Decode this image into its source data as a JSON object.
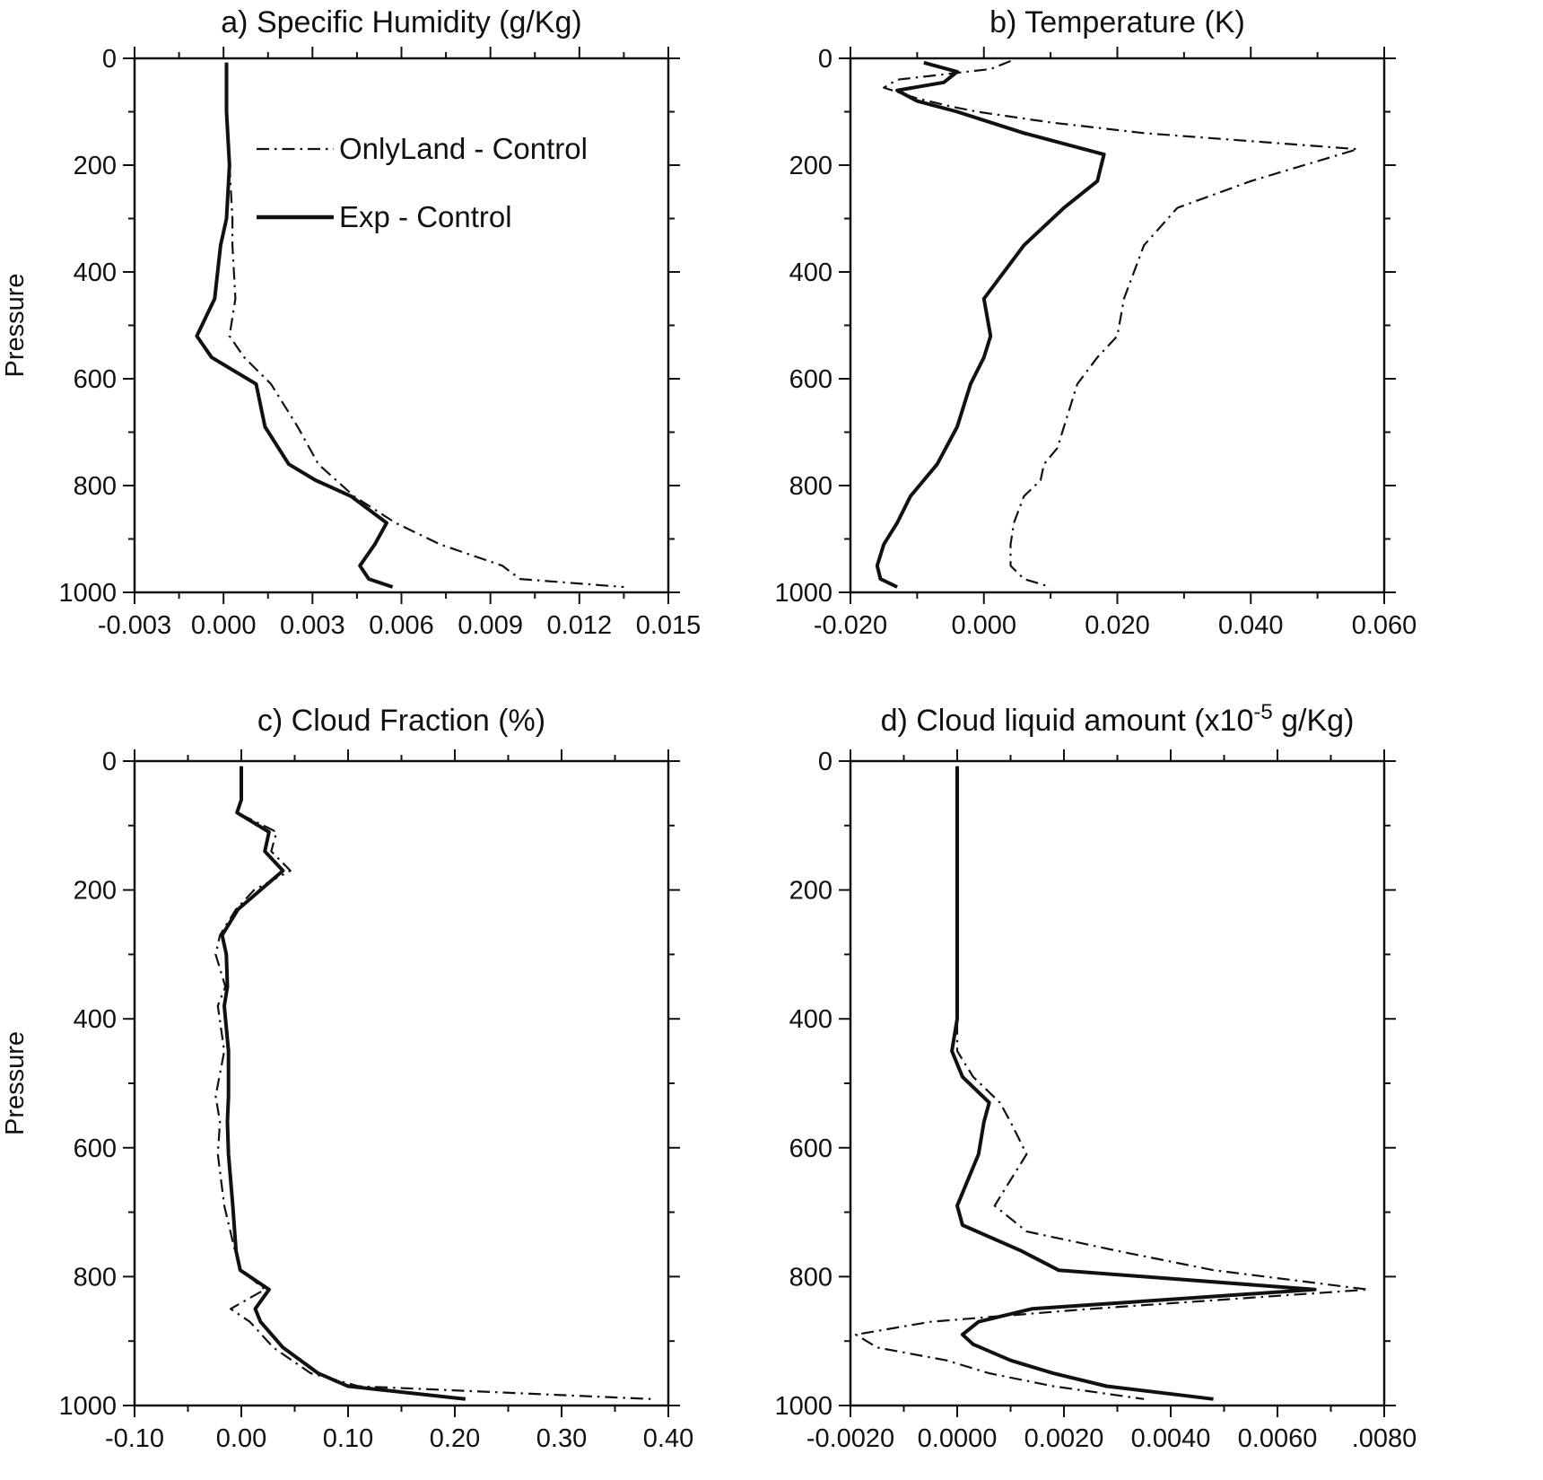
{
  "figure": {
    "background": "#ffffff",
    "line_color": "#111111"
  },
  "legend": {
    "position": "inside-upper-left-of-panel-a",
    "entries": [
      {
        "label": "OnlyLand - Control",
        "style": "dashdot"
      },
      {
        "label": "Exp - Control",
        "style": "solid"
      }
    ]
  },
  "chart_data": [
    {
      "id": "a",
      "type": "line",
      "title": "a) Specific Humidity (g/Kg)",
      "ylabel": "Pressure",
      "y_inverted": true,
      "grid": false,
      "xlim": [
        -0.003,
        0.015
      ],
      "ylim": [
        0,
        1000
      ],
      "xticks": {
        "values": [
          -0.003,
          0.0,
          0.003,
          0.006,
          0.009,
          0.012,
          0.015
        ],
        "labels": [
          "-0.003",
          "0.000",
          "0.003",
          "0.006",
          "0.009",
          "0.012",
          "0.015"
        ]
      },
      "yticks": {
        "values": [
          0,
          200,
          400,
          600,
          800,
          1000
        ],
        "labels": [
          "0",
          "200",
          "400",
          "600",
          "800",
          "1000"
        ]
      },
      "legend_position": "inside-upper-left",
      "series": [
        {
          "name": "OnlyLand - Control",
          "style": "dashdot",
          "points": [
            [
              8,
              0.0001
            ],
            [
              100,
              0.0001
            ],
            [
              200,
              0.0002
            ],
            [
              300,
              0.0003
            ],
            [
              350,
              0.0003
            ],
            [
              450,
              0.0004
            ],
            [
              520,
              0.0002
            ],
            [
              560,
              0.0007
            ],
            [
              610,
              0.0016
            ],
            [
              690,
              0.0025
            ],
            [
              760,
              0.0032
            ],
            [
              820,
              0.0044
            ],
            [
              870,
              0.0058
            ],
            [
              910,
              0.0073
            ],
            [
              950,
              0.0094
            ],
            [
              975,
              0.01
            ],
            [
              990,
              0.0135
            ]
          ]
        },
        {
          "name": "Exp - Control",
          "style": "solid",
          "points": [
            [
              8,
              0.0001
            ],
            [
              100,
              0.0001
            ],
            [
              200,
              0.0002
            ],
            [
              300,
              0.0001
            ],
            [
              350,
              -0.0001
            ],
            [
              450,
              -0.0003
            ],
            [
              520,
              -0.0009
            ],
            [
              560,
              -0.0004
            ],
            [
              610,
              0.0011
            ],
            [
              690,
              0.0014
            ],
            [
              760,
              0.0022
            ],
            [
              790,
              0.0031
            ],
            [
              820,
              0.0043
            ],
            [
              870,
              0.0055
            ],
            [
              910,
              0.0051
            ],
            [
              950,
              0.0046
            ],
            [
              975,
              0.0049
            ],
            [
              990,
              0.0057
            ]
          ]
        }
      ]
    },
    {
      "id": "b",
      "type": "line",
      "title": "b) Temperature (K)",
      "ylabel": "",
      "y_inverted": true,
      "grid": false,
      "xlim": [
        -0.02,
        0.06
      ],
      "ylim": [
        0,
        1000
      ],
      "xticks": {
        "values": [
          -0.02,
          0.0,
          0.02,
          0.04,
          0.06
        ],
        "labels": [
          "-0.020",
          "0.000",
          "0.020",
          "0.040",
          "0.060"
        ]
      },
      "yticks": {
        "values": [
          0,
          200,
          400,
          600,
          800,
          1000
        ],
        "labels": [
          "0",
          "200",
          "400",
          "600",
          "800",
          "1000"
        ]
      },
      "legend_position": null,
      "series": [
        {
          "name": "OnlyLand - Control",
          "style": "dashdot",
          "points": [
            [
              5,
              0.004
            ],
            [
              20,
              0.001
            ],
            [
              40,
              -0.013
            ],
            [
              55,
              -0.015
            ],
            [
              75,
              -0.01
            ],
            [
              90,
              -0.005
            ],
            [
              100,
              -0.001
            ],
            [
              120,
              0.01
            ],
            [
              140,
              0.024
            ],
            [
              170,
              0.056
            ],
            [
              200,
              0.048
            ],
            [
              230,
              0.04
            ],
            [
              280,
              0.029
            ],
            [
              350,
              0.024
            ],
            [
              450,
              0.021
            ],
            [
              520,
              0.02
            ],
            [
              560,
              0.017
            ],
            [
              610,
              0.014
            ],
            [
              690,
              0.012
            ],
            [
              730,
              0.011
            ],
            [
              760,
              0.009
            ],
            [
              790,
              0.0085
            ],
            [
              820,
              0.006
            ],
            [
              870,
              0.0045
            ],
            [
              910,
              0.004
            ],
            [
              950,
              0.004
            ],
            [
              975,
              0.006
            ],
            [
              990,
              0.01
            ]
          ]
        },
        {
          "name": "Exp - Control",
          "style": "solid",
          "points": [
            [
              8,
              -0.009
            ],
            [
              25,
              -0.004
            ],
            [
              45,
              -0.006
            ],
            [
              60,
              -0.013
            ],
            [
              80,
              -0.01
            ],
            [
              100,
              -0.004
            ],
            [
              140,
              0.006
            ],
            [
              180,
              0.018
            ],
            [
              230,
              0.017
            ],
            [
              280,
              0.012
            ],
            [
              350,
              0.006
            ],
            [
              450,
              0.0
            ],
            [
              520,
              0.001
            ],
            [
              560,
              0.0
            ],
            [
              610,
              -0.002
            ],
            [
              690,
              -0.004
            ],
            [
              760,
              -0.007
            ],
            [
              820,
              -0.011
            ],
            [
              870,
              -0.013
            ],
            [
              910,
              -0.015
            ],
            [
              950,
              -0.016
            ],
            [
              975,
              -0.0155
            ],
            [
              990,
              -0.013
            ]
          ]
        }
      ]
    },
    {
      "id": "c",
      "type": "line",
      "title": "c) Cloud Fraction (%)",
      "ylabel": "Pressure",
      "y_inverted": true,
      "grid": false,
      "xlim": [
        -0.1,
        0.4
      ],
      "ylim": [
        0,
        1000
      ],
      "xticks": {
        "values": [
          -0.1,
          0.0,
          0.1,
          0.2,
          0.3,
          0.4
        ],
        "labels": [
          "-0.10",
          "0.00",
          "0.10",
          "0.20",
          "0.30",
          "0.40"
        ]
      },
      "yticks": {
        "values": [
          0,
          200,
          400,
          600,
          800,
          1000
        ],
        "labels": [
          "0",
          "200",
          "400",
          "600",
          "800",
          "1000"
        ]
      },
      "legend_position": null,
      "series": [
        {
          "name": "OnlyLand - Control",
          "style": "dashdot",
          "points": [
            [
              8,
              0.0
            ],
            [
              60,
              0.0
            ],
            [
              80,
              -0.004
            ],
            [
              110,
              0.033
            ],
            [
              140,
              0.028
            ],
            [
              170,
              0.046
            ],
            [
              200,
              0.012
            ],
            [
              230,
              -0.005
            ],
            [
              270,
              -0.02
            ],
            [
              300,
              -0.024
            ],
            [
              350,
              -0.015
            ],
            [
              380,
              -0.022
            ],
            [
              450,
              -0.016
            ],
            [
              520,
              -0.024
            ],
            [
              560,
              -0.02
            ],
            [
              610,
              -0.022
            ],
            [
              690,
              -0.016
            ],
            [
              760,
              -0.006
            ],
            [
              790,
              0.0
            ],
            [
              820,
              0.022
            ],
            [
              850,
              -0.01
            ],
            [
              870,
              0.008
            ],
            [
              910,
              0.03
            ],
            [
              950,
              0.065
            ],
            [
              970,
              0.11
            ],
            [
              990,
              0.385
            ]
          ]
        },
        {
          "name": "Exp - Control",
          "style": "solid",
          "points": [
            [
              8,
              0.0
            ],
            [
              60,
              0.0
            ],
            [
              80,
              -0.004
            ],
            [
              110,
              0.026
            ],
            [
              140,
              0.022
            ],
            [
              170,
              0.039
            ],
            [
              200,
              0.018
            ],
            [
              230,
              -0.003
            ],
            [
              270,
              -0.018
            ],
            [
              300,
              -0.014
            ],
            [
              350,
              -0.013
            ],
            [
              380,
              -0.016
            ],
            [
              450,
              -0.012
            ],
            [
              520,
              -0.012
            ],
            [
              560,
              -0.013
            ],
            [
              610,
              -0.012
            ],
            [
              690,
              -0.008
            ],
            [
              760,
              -0.005
            ],
            [
              790,
              -0.001
            ],
            [
              820,
              0.026
            ],
            [
              850,
              0.013
            ],
            [
              870,
              0.018
            ],
            [
              910,
              0.039
            ],
            [
              950,
              0.072
            ],
            [
              970,
              0.1
            ],
            [
              990,
              0.21
            ]
          ]
        }
      ]
    },
    {
      "id": "d",
      "type": "line",
      "title": "d) Cloud liquid amount (x10-5 g/Kg)",
      "title_parts": [
        {
          "text": "d) Cloud liquid amount (x10"
        },
        {
          "text": "-5",
          "super": true
        },
        {
          "text": " g/Kg)"
        }
      ],
      "ylabel": "",
      "y_inverted": true,
      "grid": false,
      "xlim": [
        -0.002,
        0.008
      ],
      "ylim": [
        0,
        1000
      ],
      "xticks": {
        "values": [
          -0.002,
          0.0,
          0.002,
          0.004,
          0.006,
          0.008
        ],
        "labels": [
          "-0.0020",
          "0.0000",
          "0.0020",
          "0.0040",
          "0.0060",
          ".0080"
        ]
      },
      "yticks": {
        "values": [
          0,
          200,
          400,
          600,
          800,
          1000
        ],
        "labels": [
          "0",
          "200",
          "400",
          "600",
          "800",
          "1000"
        ]
      },
      "legend_position": null,
      "series": [
        {
          "name": "OnlyLand - Control",
          "style": "dashdot",
          "points": [
            [
              8,
              0.0
            ],
            [
              400,
              0.0
            ],
            [
              450,
              0.0
            ],
            [
              490,
              0.0003
            ],
            [
              530,
              0.0008
            ],
            [
              560,
              0.001
            ],
            [
              610,
              0.0013
            ],
            [
              650,
              0.001
            ],
            [
              690,
              0.0007
            ],
            [
              730,
              0.0013
            ],
            [
              760,
              0.003
            ],
            [
              790,
              0.0048
            ],
            [
              820,
              0.0077
            ],
            [
              850,
              0.0025
            ],
            [
              870,
              -0.0005
            ],
            [
              890,
              -0.0019
            ],
            [
              910,
              -0.0015
            ],
            [
              930,
              -0.0002
            ],
            [
              950,
              0.0006
            ],
            [
              970,
              0.0018
            ],
            [
              990,
              0.0035
            ]
          ]
        },
        {
          "name": "Exp - Control",
          "style": "solid",
          "points": [
            [
              8,
              0.0
            ],
            [
              200,
              0.0
            ],
            [
              400,
              0.0
            ],
            [
              450,
              -0.0001
            ],
            [
              490,
              0.0001
            ],
            [
              530,
              0.0006
            ],
            [
              560,
              0.0005
            ],
            [
              610,
              0.0004
            ],
            [
              650,
              0.0002
            ],
            [
              690,
              0.0
            ],
            [
              720,
              0.0001
            ],
            [
              760,
              0.0012
            ],
            [
              790,
              0.0019
            ],
            [
              820,
              0.0067
            ],
            [
              850,
              0.0014
            ],
            [
              870,
              0.0004
            ],
            [
              890,
              0.0001
            ],
            [
              905,
              0.0003
            ],
            [
              930,
              0.001
            ],
            [
              950,
              0.0018
            ],
            [
              970,
              0.0028
            ],
            [
              990,
              0.0048
            ]
          ]
        }
      ]
    }
  ]
}
